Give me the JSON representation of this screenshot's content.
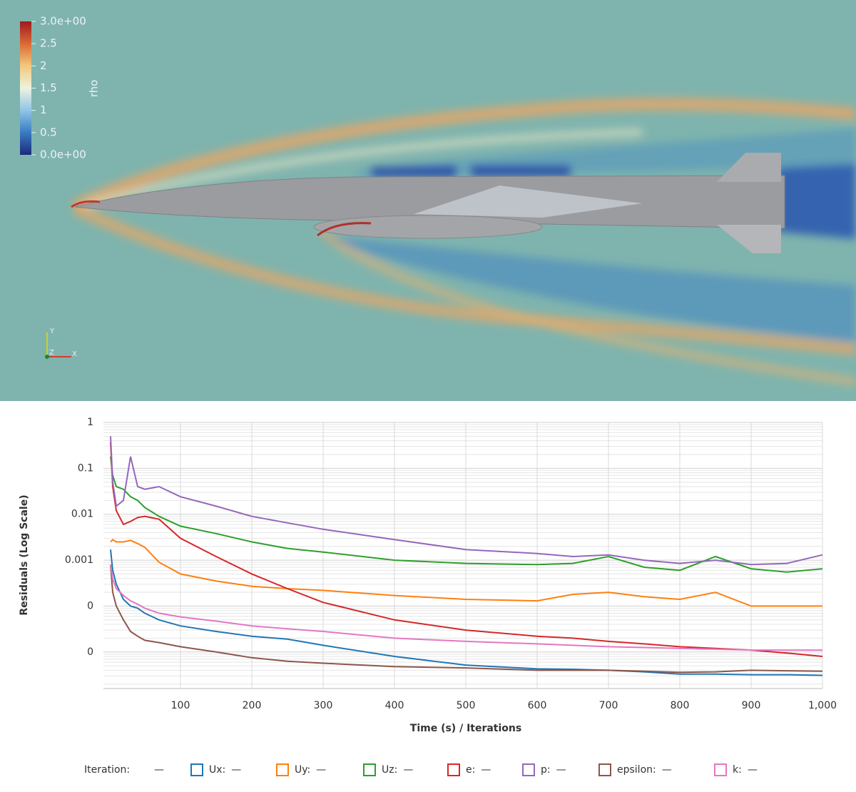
{
  "visualization": {
    "colorbar": {
      "label": "rho",
      "range": [
        0,
        3
      ],
      "ticks": [
        {
          "value": 3,
          "label": "3.0e+00"
        },
        2.5,
        2,
        1.5,
        1,
        0.5,
        {
          "value": 0,
          "label": "0.0e+00"
        }
      ]
    },
    "orientation_axes": {
      "y": "Y",
      "z": "Z",
      "x": "X"
    }
  },
  "chart_data": {
    "type": "line",
    "y_label": "Residuals (Log Scale)",
    "x_label": "Time (s) / Iterations",
    "log_y": true,
    "grid": true,
    "xlim": [
      0,
      1000
    ],
    "xticks": [
      100,
      200,
      300,
      400,
      500,
      600,
      700,
      800,
      900,
      {
        "value": 1000,
        "label": "1,000"
      }
    ],
    "ylim": [
      1.6e-06,
      1
    ],
    "yticks": [
      1,
      0.1,
      0.01,
      0.001,
      {
        "value": 0.0001,
        "label": "0"
      },
      {
        "value": 1e-05,
        "label": "0"
      }
    ],
    "iteration_legend": {
      "label": "Iteration:",
      "value": "—"
    },
    "x": [
      2,
      5,
      10,
      20,
      30,
      40,
      50,
      70,
      100,
      150,
      200,
      250,
      300,
      400,
      500,
      600,
      650,
      700,
      750,
      800,
      850,
      900,
      950,
      1000
    ],
    "series": [
      {
        "name": "Ux:",
        "legend_value": "—",
        "color": "#1f77b4",
        "values": [
          0.0017,
          0.0006,
          0.0003,
          0.00014,
          0.0001,
          9e-05,
          7e-05,
          5e-05,
          3.7e-05,
          2.8e-05,
          2.2e-05,
          1.9e-05,
          1.4e-05,
          8e-06,
          5.2e-06,
          4.3e-06,
          4.2e-06,
          4e-06,
          3.7e-06,
          3.3e-06,
          3.3e-06,
          3.2e-06,
          3.2e-06,
          3.1e-06
        ]
      },
      {
        "name": "Uy:",
        "legend_value": "—",
        "color": "#ff7f0e",
        "values": [
          0.0025,
          0.0028,
          0.0025,
          0.0025,
          0.0027,
          0.0023,
          0.0019,
          0.0009,
          0.0005,
          0.00035,
          0.00027,
          0.00024,
          0.00022,
          0.00017,
          0.00014,
          0.00013,
          0.00018,
          0.0002,
          0.00016,
          0.00014,
          0.0002,
          0.0001,
          0.0001,
          0.0001
        ]
      },
      {
        "name": "Uz:",
        "legend_value": "—",
        "color": "#2ca02c",
        "values": [
          0.18,
          0.07,
          0.04,
          0.035,
          0.024,
          0.02,
          0.014,
          0.009,
          0.0055,
          0.0038,
          0.0025,
          0.0018,
          0.0015,
          0.001,
          0.00085,
          0.0008,
          0.00085,
          0.0012,
          0.0007,
          0.0006,
          0.0012,
          0.00065,
          0.00055,
          0.00065
        ]
      },
      {
        "name": "e:",
        "legend_value": "—",
        "color": "#d62728",
        "values": [
          0.37,
          0.04,
          0.012,
          0.006,
          0.007,
          0.0085,
          0.009,
          0.0078,
          0.003,
          0.0012,
          0.0005,
          0.00024,
          0.00012,
          5e-05,
          3e-05,
          2.2e-05,
          2e-05,
          1.7e-05,
          1.5e-05,
          1.3e-05,
          1.2e-05,
          1.1e-05,
          9.5e-06,
          8e-06
        ]
      },
      {
        "name": "p:",
        "legend_value": "—",
        "color": "#9467bd",
        "values": [
          0.5,
          0.05,
          0.015,
          0.02,
          0.18,
          0.04,
          0.035,
          0.04,
          0.024,
          0.015,
          0.009,
          0.0065,
          0.0047,
          0.0028,
          0.0017,
          0.0014,
          0.0012,
          0.0013,
          0.001,
          0.00085,
          0.001,
          0.0008,
          0.00085,
          0.0013
        ]
      },
      {
        "name": "epsilon:",
        "legend_value": "—",
        "color": "#8c564b",
        "values": [
          0.0008,
          0.0002,
          0.0001,
          5e-05,
          2.8e-05,
          2.2e-05,
          1.8e-05,
          1.6e-05,
          1.3e-05,
          1e-05,
          7.5e-06,
          6.3e-06,
          5.7e-06,
          4.8e-06,
          4.5e-06,
          4e-06,
          4e-06,
          4e-06,
          3.8e-06,
          3.6e-06,
          3.7e-06,
          4e-06,
          3.9e-06,
          3.8e-06
        ]
      },
      {
        "name": "k:",
        "legend_value": "—",
        "color": "#e377c2",
        "values": [
          0.0008,
          0.00039,
          0.00024,
          0.00017,
          0.00013,
          0.00011,
          9e-05,
          7e-05,
          5.8e-05,
          4.7e-05,
          3.7e-05,
          3.2e-05,
          2.8e-05,
          2e-05,
          1.7e-05,
          1.5e-05,
          1.4e-05,
          1.3e-05,
          1.25e-05,
          1.2e-05,
          1.15e-05,
          1.1e-05,
          1.1e-05,
          1.1e-05
        ]
      }
    ]
  }
}
